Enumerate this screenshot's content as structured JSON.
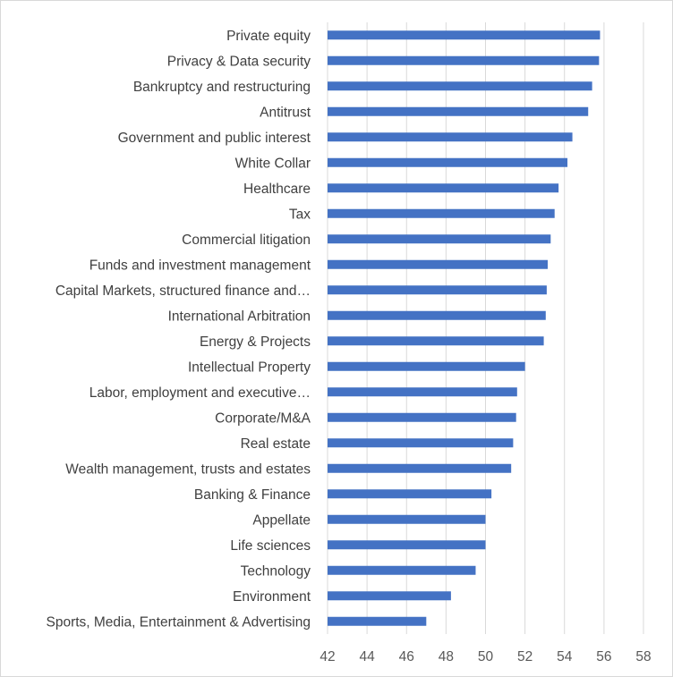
{
  "chart_data": {
    "type": "bar",
    "orientation": "horizontal",
    "title": "",
    "xlabel": "",
    "ylabel": "",
    "categories": [
      "Private equity",
      "Privacy & Data security",
      "Bankruptcy and restructuring",
      "Antitrust",
      "Government and public interest",
      "White Collar",
      "Healthcare",
      "Tax",
      "Commercial litigation",
      "Funds and investment management",
      "Capital Markets, structured finance and…",
      "International Arbitration",
      "Energy & Projects",
      "Intellectual Property",
      "Labor, employment and executive…",
      "Corporate/M&A",
      "Real estate",
      "Wealth management, trusts and estates",
      "Banking & Finance",
      "Appellate",
      "Life sciences",
      "Technology",
      "Environment",
      "Sports, Media, Entertainment & Advertising"
    ],
    "values": [
      55.8,
      55.75,
      55.4,
      55.2,
      54.4,
      54.15,
      53.7,
      53.5,
      53.3,
      53.15,
      53.1,
      53.05,
      52.95,
      52.0,
      51.6,
      51.55,
      51.4,
      51.3,
      50.3,
      50.0,
      50.0,
      49.5,
      48.25,
      47.0
    ],
    "xlim": [
      42,
      58
    ],
    "xticks": [
      42,
      44,
      46,
      48,
      50,
      52,
      54,
      56,
      58
    ],
    "grid": "vertical",
    "legend": "none",
    "bar_color": "#4472C4",
    "grid_color": "#d9d9d9"
  }
}
